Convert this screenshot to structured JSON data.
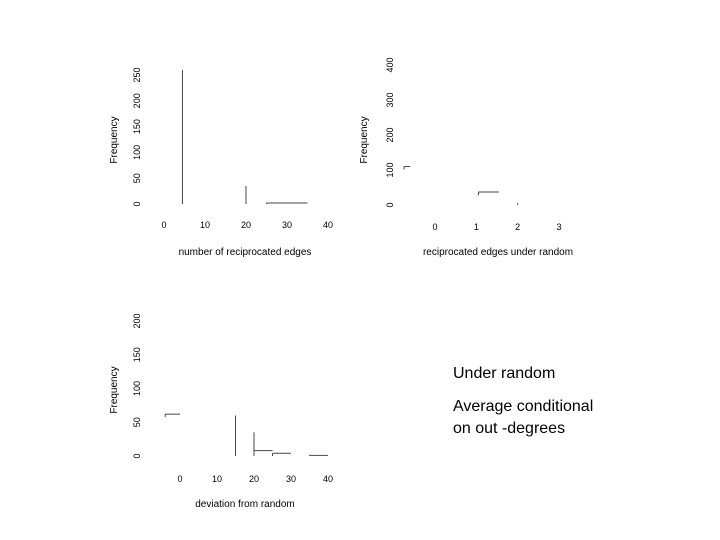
{
  "chart_data": [
    {
      "type": "bar",
      "xlabel": "number of reciprocated edges",
      "ylabel": "Frequency",
      "x_ticks": [
        0,
        10,
        20,
        30,
        40
      ],
      "y_ticks": [
        0,
        50,
        100,
        150,
        200,
        250
      ],
      "xlim": [
        0,
        40
      ],
      "ylim": [
        0,
        250
      ],
      "bars": [
        {
          "x0": 4.5,
          "x1": 4.5,
          "value": 260
        },
        {
          "x0": 20,
          "x1": 20,
          "value": 35
        },
        {
          "x0": 25,
          "x1": 35,
          "value": 2
        }
      ]
    },
    {
      "type": "bar",
      "xlabel": "reciprocated edges under random",
      "ylabel": "Frequency",
      "x_ticks": [
        0,
        1,
        2,
        3
      ],
      "y_ticks": [
        0,
        100,
        200,
        300,
        400
      ],
      "xlim": [
        0,
        3
      ],
      "ylim": [
        0,
        400
      ],
      "bars": [
        {
          "x0": -0.75,
          "x1": -0.6,
          "value": 110
        },
        {
          "x0": 1.05,
          "x1": 1.55,
          "value": 37
        },
        {
          "x0": 2.0,
          "x1": 2.0,
          "value": 5
        }
      ]
    },
    {
      "type": "bar",
      "xlabel": "deviation from random",
      "ylabel": "Frequency",
      "x_ticks": [
        0,
        10,
        20,
        30,
        40
      ],
      "y_ticks": [
        0,
        50,
        100,
        150,
        200
      ],
      "xlim": [
        0,
        40
      ],
      "ylim": [
        0,
        200
      ],
      "bars": [
        {
          "x0": -4,
          "x1": 0,
          "value": 62
        },
        {
          "x0": 15,
          "x1": 15,
          "value": 60
        },
        {
          "x0": 20,
          "x1": 20,
          "value": 35
        },
        {
          "x0": 20,
          "x1": 25,
          "value": 8
        },
        {
          "x0": 25,
          "x1": 30,
          "value": 4
        },
        {
          "x0": 35,
          "x1": 40,
          "value": 1
        }
      ]
    }
  ],
  "annotations": {
    "line1": "Under random",
    "line2": "Average conditional",
    "line3": "on out -degrees"
  }
}
